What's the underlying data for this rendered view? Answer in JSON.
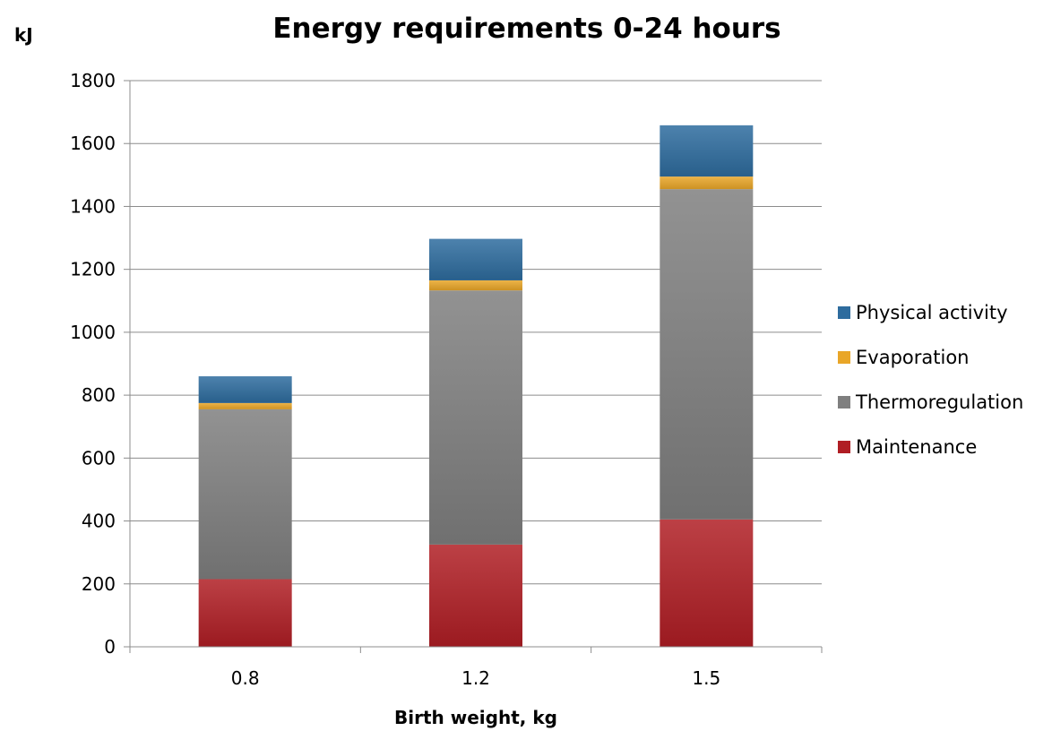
{
  "chart_data": {
    "type": "bar",
    "stacked": true,
    "title": "Energy requirements 0-24 hours",
    "ylabel": "kJ",
    "xlabel": "Birth weight, kg",
    "categories": [
      "0.8",
      "1.2",
      "1.5"
    ],
    "ylim": [
      0,
      1800
    ],
    "yticks": [
      "0",
      "200",
      "400",
      "600",
      "800",
      "1000",
      "1200",
      "1400",
      "1600",
      "1800"
    ],
    "grid": true,
    "legend_position": "right",
    "series": [
      {
        "name": "Maintenance",
        "values": [
          215,
          325,
          405
        ],
        "color": "#b01e24"
      },
      {
        "name": "Thermoregulation",
        "values": [
          540,
          808,
          1050
        ],
        "color": "#7f7f7f"
      },
      {
        "name": "Evaporation",
        "values": [
          20,
          32,
          40
        ],
        "color": "#e9a628"
      },
      {
        "name": "Physical activity",
        "values": [
          85,
          132,
          163
        ],
        "color": "#2e6c9e"
      }
    ]
  }
}
